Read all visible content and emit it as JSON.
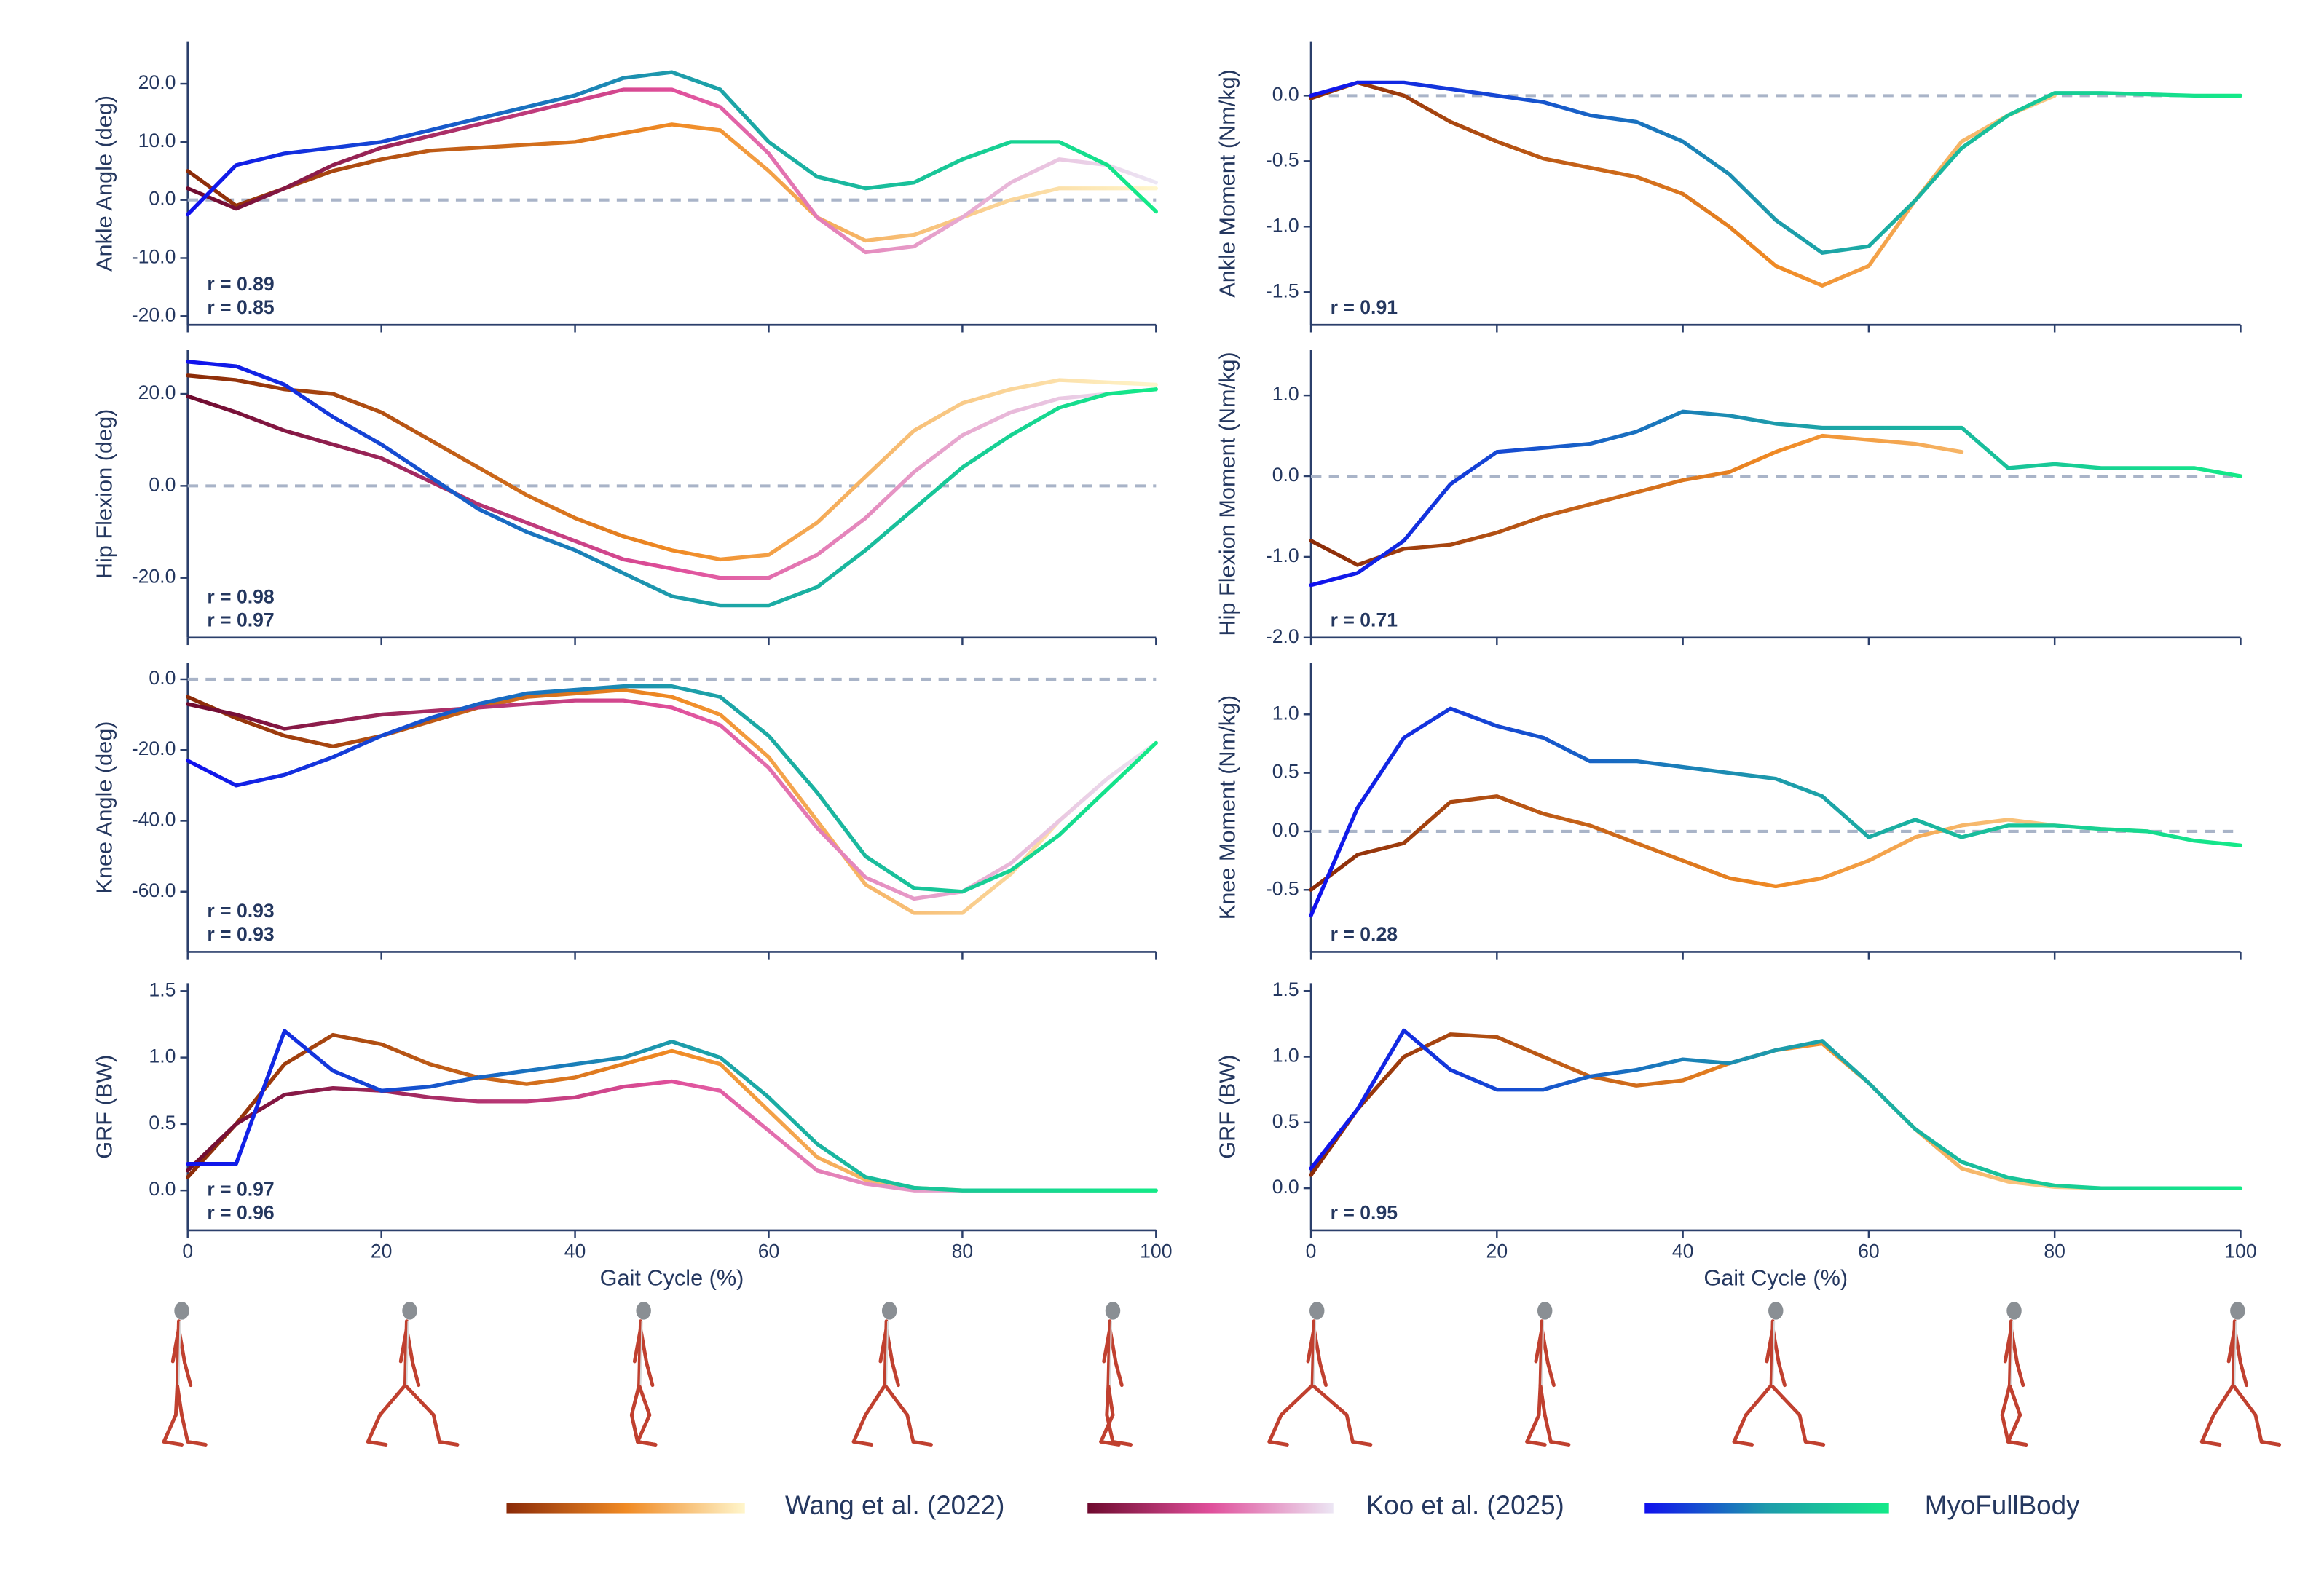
{
  "legend": [
    {
      "name": "Wang et al. (2022)",
      "colors": [
        "#8a2a08",
        "#f08a24",
        "#fff6cc"
      ]
    },
    {
      "name": "Koo et al. (2025)",
      "colors": [
        "#6e0a2e",
        "#e04f9b",
        "#ece6f4"
      ]
    },
    {
      "name": "MyoFullBody",
      "colors": [
        "#1010ee",
        "#1d9bab",
        "#14ea88"
      ]
    }
  ],
  "chart_data": [
    {
      "type": "line",
      "ylabel": "Ankle Angle (deg)",
      "xtick_labels": false,
      "x": [
        0,
        5,
        10,
        15,
        20,
        25,
        30,
        35,
        40,
        45,
        50,
        55,
        60,
        65,
        70,
        75,
        80,
        85,
        90,
        95,
        100
      ],
      "xlim": [
        0,
        100
      ],
      "xticks": [
        0,
        20,
        40,
        60,
        80,
        100
      ],
      "ylim": [
        -21.5,
        27.2
      ],
      "yticks": [
        {
          "value": -20,
          "label": "-20.0"
        },
        {
          "value": -10,
          "label": "-10.0"
        },
        {
          "value": 0,
          "label": "0.0"
        },
        {
          "value": 10,
          "label": "10.0"
        },
        {
          "value": 20,
          "label": "20.0"
        }
      ],
      "hline": 0,
      "series": [
        {
          "name": "Wang et al. (2022)",
          "values": [
            5,
            -1,
            2,
            5,
            7,
            8.5,
            9,
            9.5,
            10,
            11.5,
            13,
            12,
            5,
            -3,
            -7,
            -6,
            -3,
            0,
            2,
            2,
            2
          ]
        },
        {
          "name": "Koo et al. (2025)",
          "values": [
            2,
            -1.5,
            2,
            6,
            9,
            11,
            13,
            15,
            17,
            19,
            19,
            16,
            8,
            -3,
            -9,
            -8,
            -3,
            3,
            7,
            6,
            3
          ]
        },
        {
          "name": "MyoFullBody",
          "values": [
            -2.5,
            6,
            8,
            9,
            10,
            12,
            14,
            16,
            18,
            21,
            22,
            19,
            10,
            4,
            2,
            3,
            7,
            10,
            10,
            6,
            -2
          ]
        }
      ],
      "annotations": [
        {
          "text": "r = 0.89",
          "color": "#c8175d"
        },
        {
          "text": "r = 0.85",
          "color": "#d2601a"
        }
      ]
    },
    {
      "type": "line",
      "ylabel": "Hip Flexion (deg)",
      "xtick_labels": false,
      "x": [
        0,
        5,
        10,
        15,
        20,
        25,
        30,
        35,
        40,
        45,
        50,
        55,
        60,
        65,
        70,
        75,
        80,
        85,
        90,
        95,
        100
      ],
      "xlim": [
        0,
        100
      ],
      "xticks": [
        0,
        20,
        40,
        60,
        80,
        100
      ],
      "ylim": [
        -33,
        29.5
      ],
      "yticks": [
        {
          "value": -20,
          "label": "-20.0"
        },
        {
          "value": 0,
          "label": "0.0"
        },
        {
          "value": 20,
          "label": "20.0"
        }
      ],
      "hline": 0,
      "series": [
        {
          "name": "Wang et al. (2022)",
          "values": [
            24,
            23,
            21,
            20,
            16,
            10,
            4,
            -2,
            -7,
            -11,
            -14,
            -16,
            -15,
            -8,
            2,
            12,
            18,
            21,
            23,
            22.5,
            22
          ]
        },
        {
          "name": "Koo et al. (2025)",
          "values": [
            19.5,
            16,
            12,
            9,
            6,
            1,
            -4,
            -8,
            -12,
            -16,
            -18,
            -20,
            -20,
            -15,
            -7,
            3,
            11,
            16,
            19,
            20,
            21
          ]
        },
        {
          "name": "MyoFullBody",
          "values": [
            27,
            26,
            22,
            15,
            9,
            2,
            -5,
            -10,
            -14,
            -19,
            -24,
            -26,
            -26,
            -22,
            -14,
            -5,
            4,
            11,
            17,
            20,
            21
          ]
        }
      ],
      "annotations": [
        {
          "text": "r = 0.98",
          "color": "#c8175d"
        },
        {
          "text": "r = 0.97",
          "color": "#d2601a"
        }
      ]
    },
    {
      "type": "line",
      "ylabel": "Knee Angle (deg)",
      "xtick_labels": false,
      "x": [
        0,
        5,
        10,
        15,
        20,
        25,
        30,
        35,
        40,
        45,
        50,
        55,
        60,
        65,
        70,
        75,
        80,
        85,
        90,
        95,
        100
      ],
      "xlim": [
        0,
        100
      ],
      "xticks": [
        0,
        20,
        40,
        60,
        80,
        100
      ],
      "ylim": [
        -77,
        4.6
      ],
      "yticks": [
        {
          "value": -60,
          "label": "-60.0"
        },
        {
          "value": -40,
          "label": "-40.0"
        },
        {
          "value": -20,
          "label": "-20.0"
        },
        {
          "value": 0,
          "label": "0.0"
        }
      ],
      "hline": 0,
      "series": [
        {
          "name": "Wang et al. (2022)",
          "values": [
            -5,
            -11,
            -16,
            -19,
            -16,
            -12,
            -8,
            -5,
            -4,
            -3,
            -5,
            -10,
            -22,
            -40,
            -58,
            -66,
            -66,
            -55,
            -40,
            -28,
            -18
          ]
        },
        {
          "name": "Koo et al. (2025)",
          "values": [
            -7,
            -10,
            -14,
            -12,
            -10,
            -9,
            -8,
            -7,
            -6,
            -6,
            -8,
            -13,
            -25,
            -42,
            -56,
            -62,
            -60,
            -52,
            -40,
            -28,
            -18
          ]
        },
        {
          "name": "MyoFullBody",
          "values": [
            -23,
            -30,
            -27,
            -22,
            -16,
            -11,
            -7,
            -4,
            -3,
            -2,
            -2,
            -5,
            -16,
            -32,
            -50,
            -59,
            -60,
            -54,
            -44,
            -31,
            -18
          ]
        }
      ],
      "annotations": [
        {
          "text": "r = 0.93",
          "color": "#c8175d"
        },
        {
          "text": "r = 0.93",
          "color": "#d2601a"
        }
      ]
    },
    {
      "type": "line",
      "ylabel": "GRF (BW)",
      "xlabel": "Gait Cycle (%)",
      "x": [
        0,
        5,
        10,
        15,
        20,
        25,
        30,
        35,
        40,
        45,
        50,
        55,
        60,
        65,
        70,
        75,
        80,
        85,
        90,
        95,
        100
      ],
      "xlim": [
        0,
        100
      ],
      "xticks": [
        0,
        20,
        40,
        60,
        80,
        100
      ],
      "ylim": [
        -0.3,
        1.56
      ],
      "yticks": [
        {
          "value": 0,
          "label": "0.0"
        },
        0.5,
        {
          "value": 1,
          "label": "1.0"
        },
        1.5
      ],
      "series": [
        {
          "name": "Wang et al. (2022)",
          "values": [
            0.1,
            0.5,
            0.95,
            1.17,
            1.1,
            0.95,
            0.85,
            0.8,
            0.85,
            0.95,
            1.05,
            0.95,
            0.6,
            0.25,
            0.08,
            0.02,
            0,
            0,
            0,
            0,
            0
          ]
        },
        {
          "name": "Koo et al. (2025)",
          "values": [
            0.15,
            0.5,
            0.72,
            0.77,
            0.75,
            0.7,
            0.67,
            0.67,
            0.7,
            0.78,
            0.82,
            0.75,
            0.45,
            0.15,
            0.05,
            0,
            0,
            0,
            0,
            0,
            0
          ]
        },
        {
          "name": "MyoFullBody",
          "values": [
            0.2,
            0.2,
            1.2,
            0.9,
            0.75,
            0.78,
            0.85,
            0.9,
            0.95,
            1,
            1.12,
            1,
            0.7,
            0.35,
            0.1,
            0.02,
            0,
            0,
            0,
            0,
            0
          ]
        }
      ],
      "annotations": [
        {
          "text": "r = 0.97",
          "color": "#c8175d"
        },
        {
          "text": "r = 0.96",
          "color": "#d2601a"
        }
      ]
    },
    {
      "type": "line",
      "ylabel": "Ankle Moment (Nm/kg)",
      "xtick_labels": false,
      "x": [
        0,
        5,
        10,
        15,
        20,
        25,
        30,
        35,
        40,
        45,
        50,
        55,
        60,
        65,
        70,
        75,
        80,
        85,
        90,
        95,
        100
      ],
      "xlim": [
        0,
        100
      ],
      "xticks": [
        0,
        20,
        40,
        60,
        80,
        100
      ],
      "ylim": [
        -1.75,
        0.41
      ],
      "yticks": [
        -1.5,
        {
          "value": -1,
          "label": "-1.0"
        },
        -0.5,
        {
          "value": 0,
          "label": "0.0"
        }
      ],
      "hline": 0,
      "series": [
        {
          "name": "Wang et al. (2022)",
          "values": [
            -0.02,
            0.1,
            0,
            -0.2,
            -0.35,
            -0.48,
            -0.55,
            -0.62,
            -0.75,
            -1,
            -1.3,
            -1.45,
            -1.3,
            -0.8,
            -0.35,
            -0.15,
            0,
            null,
            null,
            null,
            null
          ]
        },
        {
          "name": "MyoFullBody",
          "values": [
            0,
            0.1,
            0.1,
            0.05,
            0,
            -0.05,
            -0.15,
            -0.2,
            -0.35,
            -0.6,
            -0.95,
            -1.2,
            -1.15,
            -0.8,
            -0.4,
            -0.15,
            0.02,
            0.02,
            0.01,
            0,
            0
          ]
        }
      ],
      "annotations": [
        {
          "text": "r = 0.91",
          "color": "#2a3f6a"
        }
      ]
    },
    {
      "type": "line",
      "ylabel": "Hip Flexion Moment (Nm/kg)",
      "xtick_labels": false,
      "x": [
        0,
        5,
        10,
        15,
        20,
        25,
        30,
        35,
        40,
        45,
        50,
        55,
        60,
        65,
        70,
        75,
        80,
        85,
        90,
        95,
        100
      ],
      "xlim": [
        0,
        100
      ],
      "xticks": [
        0,
        20,
        40,
        60,
        80,
        100
      ],
      "ylim": [
        -2,
        1.56
      ],
      "yticks": [
        {
          "value": -2,
          "label": "-2.0"
        },
        {
          "value": -1,
          "label": "-1.0"
        },
        {
          "value": 0,
          "label": "0.0"
        },
        {
          "value": 1,
          "label": "1.0"
        }
      ],
      "hline": 0,
      "series": [
        {
          "name": "Wang et al. (2022)",
          "values": [
            -0.8,
            -1.1,
            -0.9,
            -0.85,
            -0.7,
            -0.5,
            -0.35,
            -0.2,
            -0.05,
            0.05,
            0.3,
            0.5,
            0.45,
            0.4,
            0.3,
            null,
            null,
            null,
            null,
            null,
            null
          ]
        },
        {
          "name": "MyoFullBody",
          "values": [
            -1.35,
            -1.2,
            -0.8,
            -0.1,
            0.3,
            0.35,
            0.4,
            0.55,
            0.8,
            0.75,
            0.65,
            0.6,
            0.6,
            0.6,
            0.6,
            0.1,
            0.15,
            0.1,
            0.1,
            0.1,
            0
          ]
        }
      ],
      "annotations": [
        {
          "text": "r = 0.71",
          "color": "#2a3f6a"
        }
      ]
    },
    {
      "type": "line",
      "ylabel": "Knee Moment (Nm/kg)",
      "xtick_labels": false,
      "x": [
        0,
        5,
        10,
        15,
        20,
        25,
        30,
        35,
        40,
        45,
        50,
        55,
        60,
        65,
        70,
        75,
        80,
        85,
        90,
        95,
        100
      ],
      "xlim": [
        0,
        100
      ],
      "xticks": [
        0,
        20,
        40,
        60,
        80,
        100
      ],
      "ylim": [
        -1.03,
        1.44
      ],
      "yticks": [
        -0.5,
        {
          "value": 0,
          "label": "0.0"
        },
        0.5,
        {
          "value": 1,
          "label": "1.0"
        }
      ],
      "hline": 0,
      "series": [
        {
          "name": "Wang et al. (2022)",
          "values": [
            -0.5,
            -0.2,
            -0.1,
            0.25,
            0.3,
            0.15,
            0.05,
            -0.1,
            -0.25,
            -0.4,
            -0.47,
            -0.4,
            -0.25,
            -0.05,
            0.05,
            0.1,
            0.05,
            0.02,
            0,
            null,
            null
          ]
        },
        {
          "name": "MyoFullBody",
          "values": [
            -0.72,
            0.2,
            0.8,
            1.05,
            0.9,
            0.8,
            0.6,
            0.6,
            0.55,
            0.5,
            0.45,
            0.3,
            -0.05,
            0.1,
            -0.05,
            0.05,
            0.05,
            0.02,
            0,
            -0.08,
            -0.12
          ]
        }
      ],
      "annotations": [
        {
          "text": "r = 0.28",
          "color": "#2a3f6a"
        }
      ]
    },
    {
      "type": "line",
      "ylabel": "GRF (BW)",
      "xlabel": "Gait Cycle (%)",
      "x": [
        0,
        5,
        10,
        15,
        20,
        25,
        30,
        35,
        40,
        45,
        50,
        55,
        60,
        65,
        70,
        75,
        80,
        85,
        90,
        95,
        100
      ],
      "xlim": [
        0,
        100
      ],
      "xticks": [
        0,
        20,
        40,
        60,
        80,
        100
      ],
      "ylim": [
        -0.32,
        1.56
      ],
      "yticks": [
        {
          "value": 0,
          "label": "0.0"
        },
        0.5,
        {
          "value": 1,
          "label": "1.0"
        },
        1.5
      ],
      "series": [
        {
          "name": "Wang et al. (2022)",
          "values": [
            0.1,
            0.6,
            1,
            1.17,
            1.15,
            1,
            0.85,
            0.78,
            0.82,
            0.95,
            1.05,
            1.1,
            0.8,
            0.45,
            0.15,
            0.05,
            0.01,
            0,
            0,
            0,
            0
          ]
        },
        {
          "name": "MyoFullBody",
          "values": [
            0.15,
            0.6,
            1.2,
            0.9,
            0.75,
            0.75,
            0.85,
            0.9,
            0.98,
            0.95,
            1.05,
            1.12,
            0.8,
            0.45,
            0.2,
            0.08,
            0.02,
            0,
            0,
            0,
            0
          ]
        }
      ],
      "annotations": [
        {
          "text": "r = 0.95",
          "color": "#2a3f6a"
        }
      ]
    }
  ]
}
